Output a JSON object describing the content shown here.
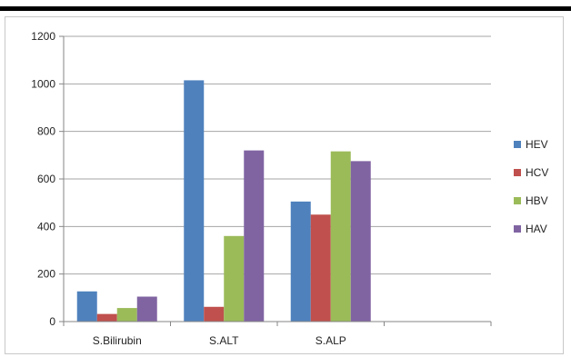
{
  "chart_data": {
    "type": "bar",
    "categories": [
      "S.Bilirubin",
      "S.ALT",
      "S.ALP",
      ""
    ],
    "series": [
      {
        "name": "HEV",
        "color": "#4f81bd",
        "values": [
          127,
          1015,
          505,
          null
        ]
      },
      {
        "name": "HCV",
        "color": "#c0504d",
        "values": [
          32,
          62,
          450,
          null
        ]
      },
      {
        "name": "HBV",
        "color": "#9bbb59",
        "values": [
          57,
          360,
          716,
          null
        ]
      },
      {
        "name": "HAV",
        "color": "#8064a2",
        "values": [
          105,
          720,
          675,
          null
        ]
      }
    ],
    "ylim": [
      0,
      1200
    ],
    "yticks": [
      0,
      200,
      400,
      600,
      800,
      1000,
      1200
    ],
    "ytick_labels": [
      "0",
      "200",
      "400",
      "600",
      "800",
      "1000",
      "1200"
    ],
    "grid": true,
    "legend_position": "right",
    "title": "",
    "xlabel": "",
    "ylabel": ""
  }
}
